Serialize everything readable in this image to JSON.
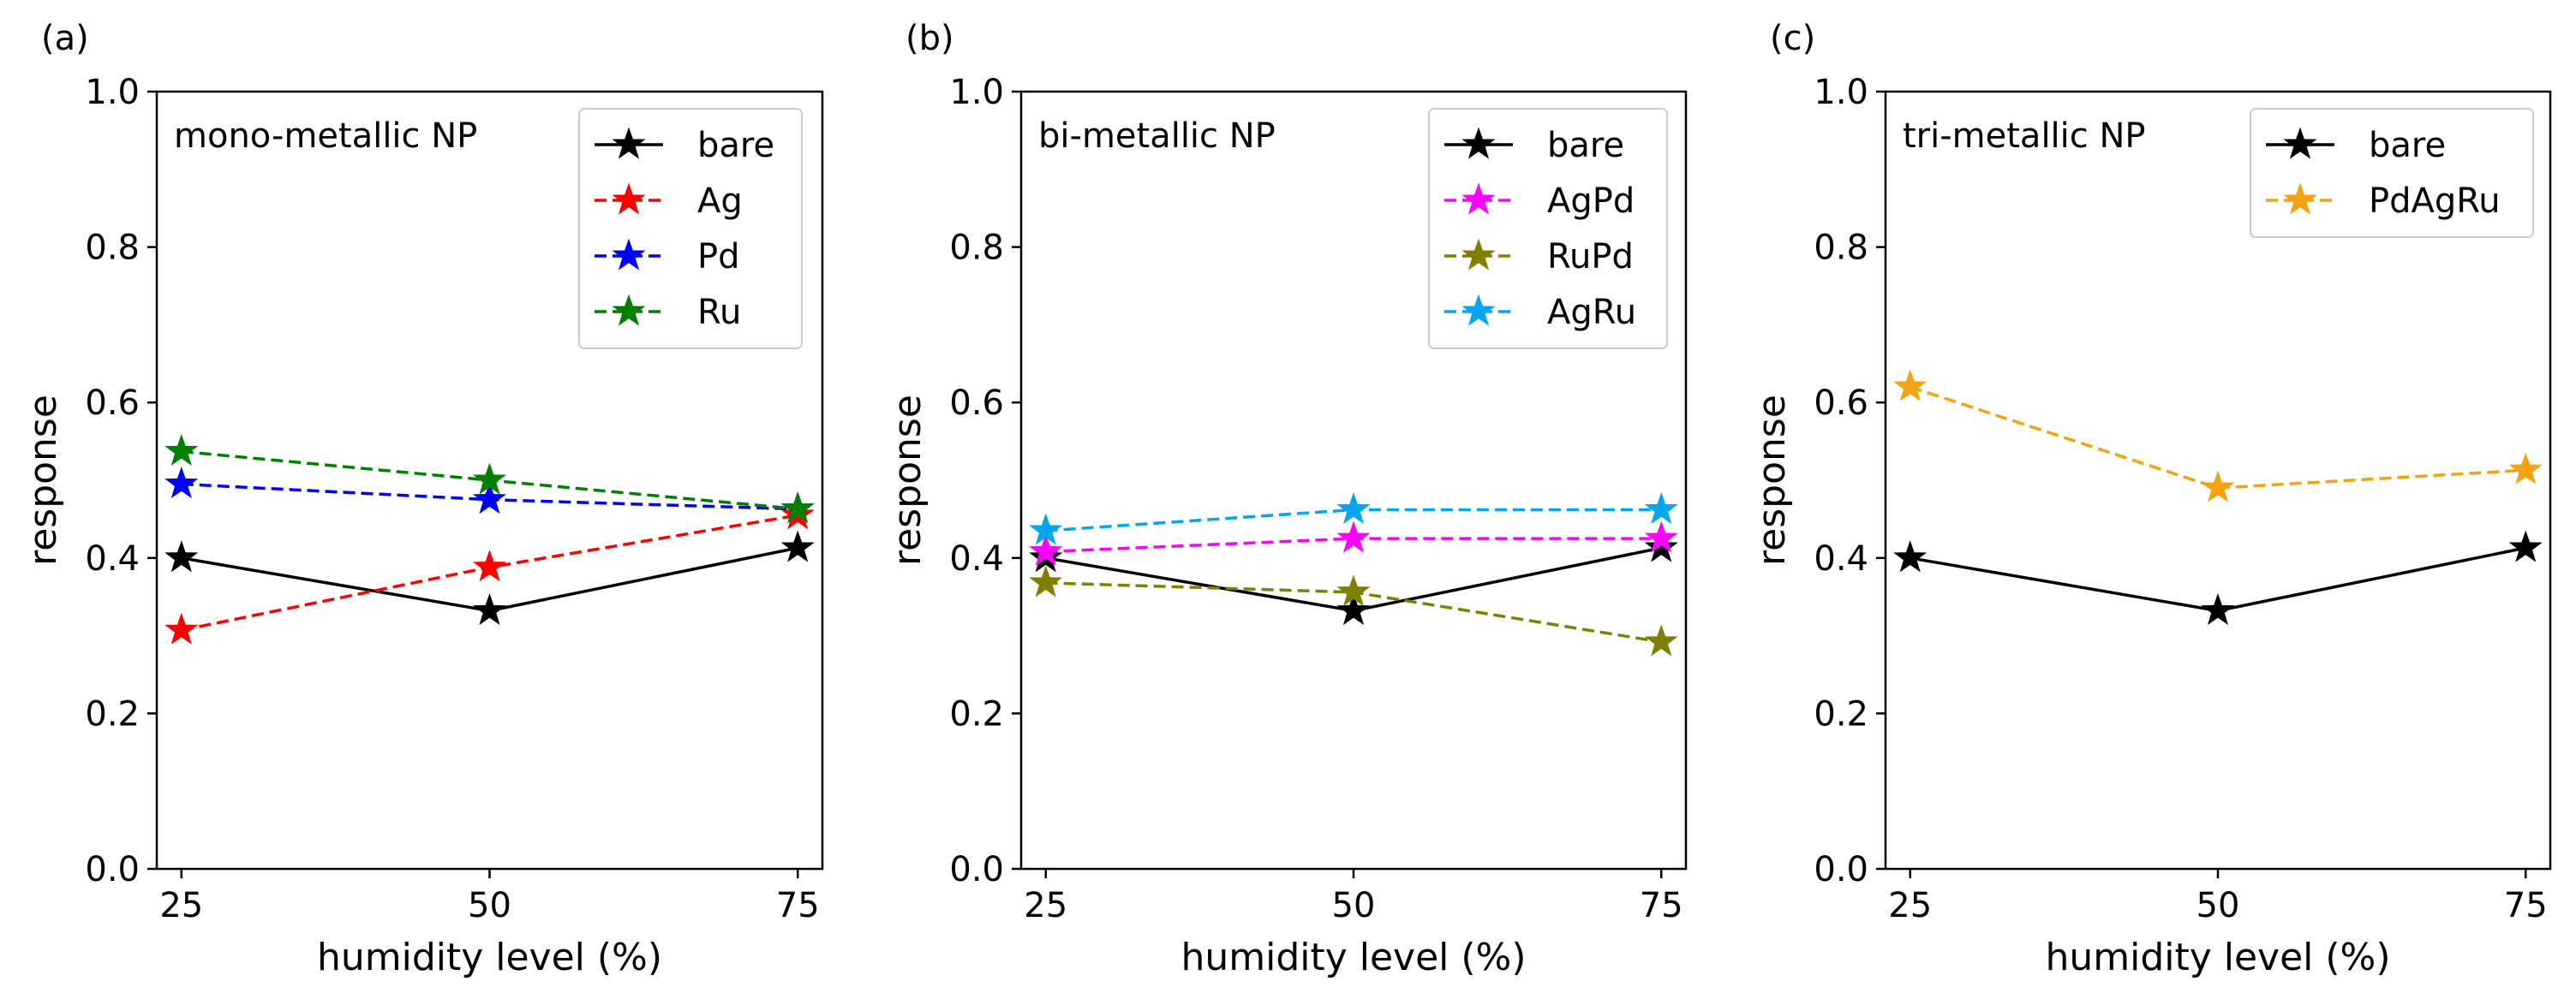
{
  "chart_data": [
    {
      "type": "line",
      "panel_label": "(a)",
      "title": "mono-metallic NP",
      "xlabel": "humidity level (%)",
      "ylabel": "response",
      "x": [
        25,
        50,
        75
      ],
      "x_tick_labels": [
        "25",
        "50",
        "75"
      ],
      "xlim": [
        23,
        77
      ],
      "ylim": [
        0.0,
        1.0
      ],
      "y_ticks": [
        0.0,
        0.2,
        0.4,
        0.6,
        0.8,
        1.0
      ],
      "y_tick_labels": [
        "0.0",
        "0.2",
        "0.4",
        "0.6",
        "0.8",
        "1.0"
      ],
      "legend_position": "top-right",
      "series": [
        {
          "name": "bare",
          "color": "#000000",
          "linestyle": "solid",
          "marker": "star",
          "values": [
            0.4,
            0.332,
            0.413
          ]
        },
        {
          "name": "Ag",
          "color": "#ff0000",
          "linestyle": "dashed",
          "marker": "star",
          "values": [
            0.307,
            0.388,
            0.455
          ]
        },
        {
          "name": "Pd",
          "color": "#0000ff",
          "linestyle": "dashed",
          "marker": "star",
          "values": [
            0.495,
            0.475,
            0.463
          ]
        },
        {
          "name": "Ru",
          "color": "#008000",
          "linestyle": "dashed",
          "marker": "star",
          "values": [
            0.537,
            0.5,
            0.463
          ]
        }
      ]
    },
    {
      "type": "line",
      "panel_label": "(b)",
      "title": "bi-metallic NP",
      "xlabel": "humidity level (%)",
      "ylabel": "response",
      "x": [
        25,
        50,
        75
      ],
      "x_tick_labels": [
        "25",
        "50",
        "75"
      ],
      "xlim": [
        23,
        77
      ],
      "ylim": [
        0.0,
        1.0
      ],
      "y_ticks": [
        0.0,
        0.2,
        0.4,
        0.6,
        0.8,
        1.0
      ],
      "y_tick_labels": [
        "0.0",
        "0.2",
        "0.4",
        "0.6",
        "0.8",
        "1.0"
      ],
      "legend_position": "top-right",
      "series": [
        {
          "name": "bare",
          "color": "#000000",
          "linestyle": "solid",
          "marker": "star",
          "values": [
            0.4,
            0.332,
            0.413
          ]
        },
        {
          "name": "AgPd",
          "color": "#ff00ff",
          "linestyle": "dashed",
          "marker": "star",
          "values": [
            0.408,
            0.425,
            0.425
          ]
        },
        {
          "name": "RuPd",
          "color": "#808000",
          "linestyle": "dashed",
          "marker": "star",
          "values": [
            0.368,
            0.356,
            0.292
          ]
        },
        {
          "name": "AgRu",
          "color": "#00a6f0",
          "linestyle": "dashed",
          "marker": "star",
          "values": [
            0.435,
            0.462,
            0.462
          ]
        }
      ]
    },
    {
      "type": "line",
      "panel_label": "(c)",
      "title": "tri-metallic NP",
      "xlabel": "humidity level (%)",
      "ylabel": "response",
      "x": [
        25,
        50,
        75
      ],
      "x_tick_labels": [
        "25",
        "50",
        "75"
      ],
      "xlim": [
        23,
        77
      ],
      "ylim": [
        0.0,
        1.0
      ],
      "y_ticks": [
        0.0,
        0.2,
        0.4,
        0.6,
        0.8,
        1.0
      ],
      "y_tick_labels": [
        "0.0",
        "0.2",
        "0.4",
        "0.6",
        "0.8",
        "1.0"
      ],
      "legend_position": "top-right",
      "series": [
        {
          "name": "bare",
          "color": "#000000",
          "linestyle": "solid",
          "marker": "star",
          "values": [
            0.4,
            0.332,
            0.413
          ]
        },
        {
          "name": "PdAgRu",
          "color": "#f2a30f",
          "linestyle": "dashed",
          "marker": "star",
          "values": [
            0.62,
            0.49,
            0.513
          ]
        }
      ]
    }
  ]
}
